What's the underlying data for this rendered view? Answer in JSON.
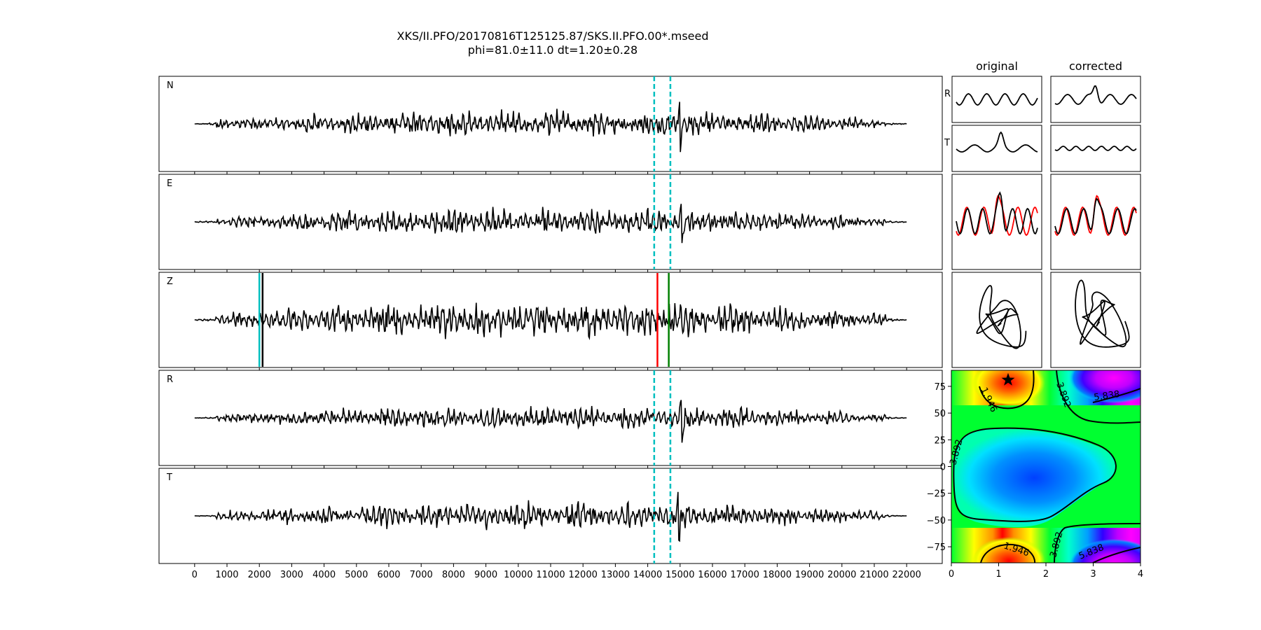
{
  "title": {
    "line1": "XKS/II.PFO/20170816T125125.87/SKS.II.PFO.00*.mseed",
    "line2": "phi=81.0±11.0 dt=1.20±0.28"
  },
  "chart_data": [
    {
      "type": "line",
      "name": "trace-panels",
      "panels": [
        "N",
        "E",
        "Z",
        "R",
        "T"
      ],
      "x_ticks": [
        0,
        1000,
        2000,
        3000,
        4000,
        5000,
        6000,
        7000,
        8000,
        9000,
        10000,
        11000,
        12000,
        13000,
        14000,
        15000,
        16000,
        17000,
        18000,
        19000,
        20000,
        21000,
        22000
      ],
      "xlim": [
        -1100,
        23100
      ],
      "data_xrange": [
        0,
        22000
      ],
      "window_lines": {
        "color": "#00bfbf",
        "style": "dashed",
        "x": [
          14200,
          14700
        ],
        "panels": [
          "N",
          "E",
          "R",
          "T"
        ]
      },
      "z_markers": [
        {
          "x": 2000,
          "color": "#00bfbf"
        },
        {
          "x": 2100,
          "color": "#000000"
        },
        {
          "x": 14300,
          "color": "#ff0000"
        },
        {
          "x": 14650,
          "color": "#008000"
        }
      ],
      "pulses": {
        "N": 15000,
        "E": 15050,
        "R": 15050,
        "T": 14950
      }
    },
    {
      "type": "line",
      "name": "particle-panels",
      "column_titles": [
        "original",
        "corrected"
      ],
      "row_labels": [
        "R",
        "T"
      ],
      "overlay_colors": [
        "#000000",
        "#ff0000"
      ]
    },
    {
      "type": "heatmap",
      "name": "error-surface",
      "x_ticks": [
        0,
        1,
        2,
        3,
        4
      ],
      "y_ticks": [
        75,
        50,
        25,
        0,
        -25,
        -50,
        -75
      ],
      "y_tick_labels": [
        "75",
        "50",
        "25",
        "0",
        "−25",
        "−50",
        "−75"
      ],
      "xlim": [
        0,
        4
      ],
      "ylim": [
        -90,
        90
      ],
      "contour_labels": [
        "1.946",
        "3.892",
        "5.838",
        "3.892",
        "1.946",
        "3.892",
        "5.838"
      ],
      "best_fit": {
        "dt": 1.2,
        "phi": 81.0,
        "marker": "star"
      }
    }
  ]
}
